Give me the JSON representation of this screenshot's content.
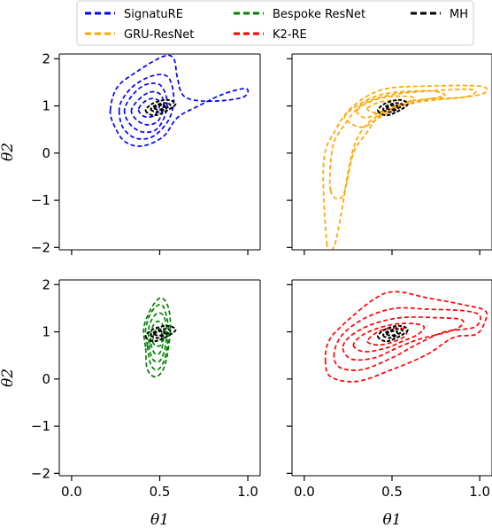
{
  "chart_data": {
    "type": "contour",
    "layout": "2x2 grid, shared x and y axes",
    "xlabel": "θ1",
    "ylabel": "θ2",
    "xlim": [
      -0.07,
      1.07
    ],
    "ylim": [
      -2.05,
      2.1
    ],
    "xticks": [
      "0.0",
      "0.5",
      "1.0"
    ],
    "yticks": [
      "−2",
      "−1",
      "0",
      "1",
      "2"
    ],
    "legend": {
      "placement": "top",
      "columns": 3,
      "entries": [
        {
          "label": "SignatuRE",
          "color": "#0000ff"
        },
        {
          "label": "GRU-ResNet",
          "color": "#ffa500"
        },
        {
          "label": "Bespoke ResNet",
          "color": "#008000"
        },
        {
          "label": "K2-RE",
          "color": "#ff0000"
        },
        {
          "label": "MH",
          "color": "#000000"
        }
      ]
    },
    "panels": [
      {
        "name": "SignatuRE",
        "color": "#0000ff",
        "contours": [
          [
            [
              0.22,
              0.92
            ],
            [
              0.24,
              0.6
            ],
            [
              0.3,
              0.25
            ],
            [
              0.4,
              0.15
            ],
            [
              0.52,
              0.35
            ],
            [
              0.6,
              0.75
            ],
            [
              0.72,
              1.0
            ],
            [
              0.86,
              1.25
            ],
            [
              0.99,
              1.37
            ],
            [
              0.97,
              1.18
            ],
            [
              0.78,
              1.1
            ],
            [
              0.64,
              1.2
            ],
            [
              0.6,
              1.6
            ],
            [
              0.58,
              2.0
            ],
            [
              0.52,
              2.05
            ],
            [
              0.38,
              1.75
            ],
            [
              0.26,
              1.4
            ]
          ],
          [
            [
              0.27,
              0.9
            ],
            [
              0.29,
              0.55
            ],
            [
              0.36,
              0.32
            ],
            [
              0.46,
              0.35
            ],
            [
              0.55,
              0.7
            ],
            [
              0.58,
              1.15
            ],
            [
              0.55,
              1.6
            ],
            [
              0.47,
              1.65
            ],
            [
              0.36,
              1.45
            ],
            [
              0.29,
              1.15
            ]
          ],
          [
            [
              0.3,
              0.92
            ],
            [
              0.33,
              0.62
            ],
            [
              0.4,
              0.45
            ],
            [
              0.48,
              0.5
            ],
            [
              0.53,
              0.8
            ],
            [
              0.54,
              1.15
            ],
            [
              0.5,
              1.45
            ],
            [
              0.42,
              1.45
            ],
            [
              0.35,
              1.25
            ]
          ],
          [
            [
              0.34,
              0.92
            ],
            [
              0.37,
              0.7
            ],
            [
              0.43,
              0.6
            ],
            [
              0.49,
              0.68
            ],
            [
              0.52,
              0.95
            ],
            [
              0.51,
              1.22
            ],
            [
              0.46,
              1.3
            ],
            [
              0.4,
              1.2
            ]
          ],
          [
            [
              0.38,
              0.92
            ],
            [
              0.41,
              0.78
            ],
            [
              0.46,
              0.78
            ],
            [
              0.49,
              0.9
            ],
            [
              0.5,
              1.08
            ],
            [
              0.46,
              1.16
            ],
            [
              0.41,
              1.08
            ]
          ]
        ],
        "mh_contours": [
          [
            [
              0.42,
              0.9
            ],
            [
              0.47,
              0.8
            ],
            [
              0.55,
              0.92
            ],
            [
              0.59,
              1.05
            ],
            [
              0.54,
              1.13
            ],
            [
              0.46,
              1.05
            ]
          ],
          [
            [
              0.45,
              0.92
            ],
            [
              0.49,
              0.87
            ],
            [
              0.54,
              0.96
            ],
            [
              0.56,
              1.03
            ],
            [
              0.52,
              1.06
            ],
            [
              0.47,
              1.0
            ]
          ],
          [
            [
              0.47,
              0.95
            ],
            [
              0.5,
              0.92
            ],
            [
              0.53,
              0.98
            ],
            [
              0.52,
              1.02
            ],
            [
              0.49,
              1.0
            ]
          ]
        ]
      },
      {
        "name": "GRU-ResNet",
        "color": "#ffa500",
        "contours": [
          [
            [
              0.13,
              -1.95
            ],
            [
              0.11,
              -0.2
            ],
            [
              0.18,
              0.5
            ],
            [
              0.28,
              1.0
            ],
            [
              0.45,
              1.35
            ],
            [
              0.7,
              1.42
            ],
            [
              1.0,
              1.42
            ],
            [
              1.03,
              1.28
            ],
            [
              0.9,
              1.18
            ],
            [
              0.6,
              1.1
            ],
            [
              0.4,
              0.75
            ],
            [
              0.3,
              0.3
            ],
            [
              0.25,
              -0.4
            ],
            [
              0.21,
              -1.3
            ],
            [
              0.17,
              -1.97
            ]
          ],
          [
            [
              0.15,
              -0.8
            ],
            [
              0.16,
              0.1
            ],
            [
              0.22,
              0.55
            ],
            [
              0.32,
              1.0
            ],
            [
              0.45,
              1.2
            ],
            [
              0.65,
              1.3
            ],
            [
              0.95,
              1.35
            ],
            [
              0.93,
              1.2
            ],
            [
              0.65,
              1.08
            ],
            [
              0.45,
              0.85
            ],
            [
              0.35,
              0.4
            ],
            [
              0.28,
              0.0
            ],
            [
              0.22,
              -0.9
            ]
          ],
          [
            [
              0.23,
              0.75
            ],
            [
              0.3,
              1.0
            ],
            [
              0.45,
              1.25
            ],
            [
              0.7,
              1.32
            ],
            [
              0.8,
              1.22
            ],
            [
              0.62,
              1.08
            ],
            [
              0.45,
              0.8
            ],
            [
              0.33,
              0.55
            ]
          ],
          [
            [
              0.3,
              0.9
            ],
            [
              0.38,
              1.1
            ],
            [
              0.5,
              1.2
            ],
            [
              0.62,
              1.18
            ],
            [
              0.56,
              1.02
            ],
            [
              0.44,
              0.88
            ],
            [
              0.35,
              0.75
            ]
          ],
          [
            [
              0.36,
              0.95
            ],
            [
              0.43,
              1.08
            ],
            [
              0.52,
              1.12
            ],
            [
              0.55,
              1.02
            ],
            [
              0.47,
              0.92
            ],
            [
              0.4,
              0.86
            ]
          ]
        ],
        "mh_contours": [
          [
            [
              0.42,
              0.9
            ],
            [
              0.47,
              0.8
            ],
            [
              0.55,
              0.92
            ],
            [
              0.59,
              1.05
            ],
            [
              0.54,
              1.13
            ],
            [
              0.46,
              1.05
            ]
          ],
          [
            [
              0.45,
              0.92
            ],
            [
              0.49,
              0.87
            ],
            [
              0.54,
              0.96
            ],
            [
              0.56,
              1.03
            ],
            [
              0.52,
              1.06
            ],
            [
              0.47,
              1.0
            ]
          ],
          [
            [
              0.47,
              0.95
            ],
            [
              0.5,
              0.92
            ],
            [
              0.53,
              0.98
            ],
            [
              0.52,
              1.02
            ],
            [
              0.49,
              1.0
            ]
          ]
        ]
      },
      {
        "name": "Bespoke ResNet",
        "color": "#008000",
        "contours": [
          [
            [
              0.42,
              0.65
            ],
            [
              0.43,
              0.2
            ],
            [
              0.48,
              0.05
            ],
            [
              0.53,
              0.3
            ],
            [
              0.56,
              1.0
            ],
            [
              0.55,
              1.5
            ],
            [
              0.51,
              1.72
            ],
            [
              0.46,
              1.55
            ],
            [
              0.41,
              1.1
            ]
          ],
          [
            [
              0.43,
              0.7
            ],
            [
              0.45,
              0.3
            ],
            [
              0.49,
              0.2
            ],
            [
              0.53,
              0.45
            ],
            [
              0.55,
              1.0
            ],
            [
              0.53,
              1.45
            ],
            [
              0.5,
              1.58
            ],
            [
              0.45,
              1.4
            ],
            [
              0.42,
              1.05
            ]
          ],
          [
            [
              0.44,
              0.72
            ],
            [
              0.46,
              0.42
            ],
            [
              0.5,
              0.38
            ],
            [
              0.53,
              0.65
            ],
            [
              0.54,
              1.05
            ],
            [
              0.52,
              1.35
            ],
            [
              0.48,
              1.38
            ],
            [
              0.44,
              1.12
            ]
          ],
          [
            [
              0.45,
              0.75
            ],
            [
              0.47,
              0.55
            ],
            [
              0.5,
              0.55
            ],
            [
              0.52,
              0.78
            ],
            [
              0.52,
              1.1
            ],
            [
              0.5,
              1.22
            ],
            [
              0.47,
              1.18
            ],
            [
              0.45,
              0.98
            ]
          ],
          [
            [
              0.46,
              0.8
            ],
            [
              0.48,
              0.7
            ],
            [
              0.51,
              0.74
            ],
            [
              0.51,
              1.0
            ],
            [
              0.49,
              1.08
            ],
            [
              0.47,
              1.0
            ]
          ]
        ],
        "mh_contours": [
          [
            [
              0.42,
              0.9
            ],
            [
              0.47,
              0.8
            ],
            [
              0.55,
              0.92
            ],
            [
              0.59,
              1.05
            ],
            [
              0.54,
              1.13
            ],
            [
              0.46,
              1.05
            ]
          ],
          [
            [
              0.45,
              0.92
            ],
            [
              0.49,
              0.87
            ],
            [
              0.54,
              0.96
            ],
            [
              0.56,
              1.03
            ],
            [
              0.52,
              1.06
            ],
            [
              0.47,
              1.0
            ]
          ],
          [
            [
              0.47,
              0.95
            ],
            [
              0.5,
              0.92
            ],
            [
              0.53,
              0.98
            ],
            [
              0.52,
              1.02
            ],
            [
              0.49,
              1.0
            ]
          ]
        ]
      },
      {
        "name": "K2-RE",
        "color": "#ff0000",
        "contours": [
          [
            [
              0.12,
              0.4
            ],
            [
              0.15,
              0.05
            ],
            [
              0.3,
              -0.05
            ],
            [
              0.5,
              0.2
            ],
            [
              0.7,
              0.52
            ],
            [
              0.85,
              0.88
            ],
            [
              0.98,
              0.95
            ],
            [
              1.03,
              1.22
            ],
            [
              1.03,
              1.45
            ],
            [
              0.9,
              1.58
            ],
            [
              0.7,
              1.72
            ],
            [
              0.52,
              1.85
            ],
            [
              0.4,
              1.7
            ],
            [
              0.22,
              1.15
            ],
            [
              0.14,
              0.8
            ]
          ],
          [
            [
              0.17,
              0.55
            ],
            [
              0.2,
              0.25
            ],
            [
              0.33,
              0.2
            ],
            [
              0.5,
              0.45
            ],
            [
              0.65,
              0.75
            ],
            [
              0.8,
              1.0
            ],
            [
              0.97,
              1.1
            ],
            [
              1.0,
              1.35
            ],
            [
              0.9,
              1.45
            ],
            [
              0.7,
              1.48
            ],
            [
              0.52,
              1.5
            ],
            [
              0.35,
              1.3
            ],
            [
              0.22,
              0.95
            ]
          ],
          [
            [
              0.22,
              0.65
            ],
            [
              0.27,
              0.42
            ],
            [
              0.4,
              0.45
            ],
            [
              0.54,
              0.68
            ],
            [
              0.66,
              0.85
            ],
            [
              0.86,
              1.05
            ],
            [
              0.9,
              1.25
            ],
            [
              0.75,
              1.3
            ],
            [
              0.55,
              1.3
            ],
            [
              0.38,
              1.15
            ],
            [
              0.26,
              0.9
            ]
          ],
          [
            [
              0.28,
              0.72
            ],
            [
              0.34,
              0.58
            ],
            [
              0.46,
              0.65
            ],
            [
              0.56,
              0.8
            ],
            [
              0.65,
              0.95
            ],
            [
              0.68,
              1.12
            ],
            [
              0.58,
              1.18
            ],
            [
              0.46,
              1.12
            ],
            [
              0.34,
              0.95
            ]
          ],
          [
            [
              0.36,
              0.8
            ],
            [
              0.42,
              0.72
            ],
            [
              0.5,
              0.78
            ],
            [
              0.57,
              0.9
            ],
            [
              0.58,
              1.05
            ],
            [
              0.5,
              1.08
            ],
            [
              0.42,
              1.0
            ]
          ]
        ],
        "mh_contours": [
          [
            [
              0.42,
              0.9
            ],
            [
              0.47,
              0.8
            ],
            [
              0.55,
              0.92
            ],
            [
              0.59,
              1.05
            ],
            [
              0.54,
              1.13
            ],
            [
              0.46,
              1.05
            ]
          ],
          [
            [
              0.45,
              0.92
            ],
            [
              0.49,
              0.87
            ],
            [
              0.54,
              0.96
            ],
            [
              0.56,
              1.03
            ],
            [
              0.52,
              1.06
            ],
            [
              0.47,
              1.0
            ]
          ],
          [
            [
              0.47,
              0.95
            ],
            [
              0.5,
              0.92
            ],
            [
              0.53,
              0.98
            ],
            [
              0.52,
              1.02
            ],
            [
              0.49,
              1.0
            ]
          ]
        ]
      }
    ]
  }
}
